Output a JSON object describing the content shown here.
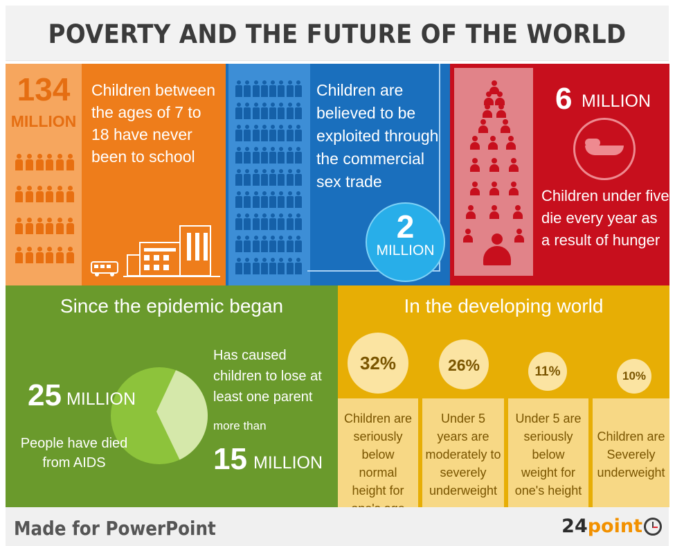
{
  "title": "POVERTY AND THE FUTURE OF THE WORLD",
  "colors": {
    "orange": "#ee7d1b",
    "blue": "#1a6fbd",
    "red": "#c70f1d",
    "green": "#6a9a2c",
    "yellow": "#e7ae05",
    "pie_main": "#8dc33b",
    "pie_slice": "#d5e8aa"
  },
  "schooling": {
    "number": "134",
    "unit": "MILLION",
    "description": "Children between the ages of 7 to 18 have never been to school",
    "icons": [
      "children-group-icon",
      "school-building-icon",
      "school-bus-icon"
    ]
  },
  "exploitation": {
    "description": "Children are believed to be exploited through the commercial sex trade",
    "number": "2",
    "unit": "MILLION",
    "icons": [
      "people-group-icon"
    ]
  },
  "hunger": {
    "number": "6",
    "unit": "MILLION",
    "description": "Children under five die every year as a result of hunger",
    "icons": [
      "helping-hand-icon",
      "people-pyramid-icon"
    ]
  },
  "epidemic": {
    "heading": "Since the epidemic began",
    "deaths_number": "25",
    "deaths_unit": "MILLION",
    "deaths_label": "People have died from AIDS",
    "orphans_label": "Has caused children to lose at least one parent",
    "orphans_prefix": "more than",
    "orphans_number": "15",
    "orphans_unit": "MILLION",
    "pie_highlight_fraction": 0.375
  },
  "developing": {
    "heading": "In the developing world",
    "stats": [
      {
        "pct": "32%",
        "label": "Children are seriously below normal height for one's age"
      },
      {
        "pct": "26%",
        "label": "Under 5 years are moderately to severely underweight"
      },
      {
        "pct": "11%",
        "label": "Under 5 are seriously below weight for one's height"
      },
      {
        "pct": "10%",
        "label": "Children are Severely underweight"
      }
    ]
  },
  "footer": {
    "made_for": "Made for PowerPoint",
    "brand_number": "24",
    "brand_word": "point"
  }
}
